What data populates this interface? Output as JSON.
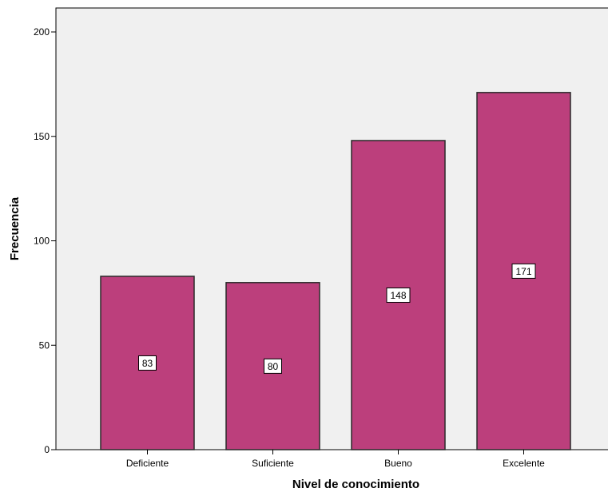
{
  "colors": {
    "plot_background": "#f0f0f0",
    "bar_fill": "#bc3f7c",
    "bar_stroke": "#2a2a2a",
    "label_box_fill": "#ffffff",
    "label_box_stroke": "#000000"
  },
  "chart_data": {
    "type": "bar",
    "title": "",
    "xlabel": "Nivel de conocimiento",
    "ylabel": "Frecuencia",
    "categories": [
      "Deficiente",
      "Suficiente",
      "Bueno",
      "Excelente"
    ],
    "values": [
      83,
      80,
      148,
      171
    ],
    "data_labels": [
      "83",
      "80",
      "148",
      "171"
    ],
    "ylim": [
      0,
      210
    ],
    "yticks": [
      0,
      50,
      100,
      150,
      200
    ],
    "grid": false,
    "legend": "none"
  }
}
